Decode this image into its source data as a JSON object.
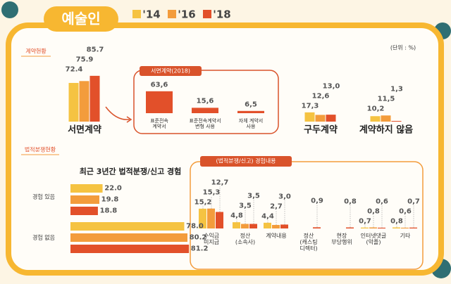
{
  "header": {
    "title": "예술인"
  },
  "unit": "(단위 : %)",
  "sections": [
    "계약현황",
    "법적분쟁현황"
  ],
  "chart_data": [
    {
      "type": "bar",
      "categories": [
        "서면계약",
        "구두계약",
        "계약하지 않음"
      ],
      "series": [
        {
          "name": "'14",
          "color": "#f5c342",
          "values": [
            72.4,
            17.3,
            10.2
          ],
          "value_labels": [
            "72.4",
            "17,3",
            "10,2"
          ]
        },
        {
          "name": "'16",
          "color": "#f39c3c",
          "values": [
            75.9,
            12.6,
            11.5
          ],
          "value_labels": [
            "75.9",
            "12,6",
            "11,5"
          ]
        },
        {
          "name": "'18",
          "color": "#e2502a",
          "values": [
            85.7,
            13.0,
            1.3
          ],
          "value_labels": [
            "85.7",
            "13,0",
            "1,3"
          ]
        }
      ]
    },
    {
      "type": "bar",
      "title": "서면계약(2018)",
      "categories": [
        "표준전속\n계약서",
        "표준전속계약서\n변형 사용",
        "자체 계약서\n사용"
      ],
      "color": "#e2502a",
      "values": [
        63.6,
        15.6,
        6.5
      ],
      "value_labels": [
        "63,6",
        "15,6",
        "6,5"
      ]
    },
    {
      "type": "hbar",
      "title": "최근 3년간 법적분쟁/신고 경험",
      "categories": [
        "경험 있음",
        "경험 없음"
      ],
      "series": [
        {
          "color": "#f5c342",
          "values": [
            22.0,
            78.0
          ],
          "value_labels": [
            "22.0",
            "78.0"
          ]
        },
        {
          "color": "#f39c3c",
          "values": [
            19.8,
            80.2
          ],
          "value_labels": [
            "19.8",
            "80.2"
          ]
        },
        {
          "color": "#e2502a",
          "values": [
            18.8,
            81.2
          ],
          "value_labels": [
            "18.8",
            "81.2"
          ]
        }
      ]
    },
    {
      "type": "bar",
      "title": "(법적분쟁/신고) 경험내용",
      "categories": [
        "수익금\n미지급",
        "정산\n(소속사)",
        "계약내용",
        "정산\n(캐스팅\n디렉터)",
        "현장\n부당행위",
        "인터넷댓글\n(악플)",
        "기타"
      ],
      "series": [
        {
          "color": "#f5c342",
          "values": [
            15.2,
            4.8,
            4.4,
            null,
            null,
            0.7,
            0.8
          ],
          "value_labels": [
            "15,2",
            "4,8",
            "4,4",
            null,
            null,
            "0,7",
            "0,8"
          ]
        },
        {
          "color": "#f39c3c",
          "values": [
            15.3,
            3.5,
            2.7,
            null,
            null,
            0.8,
            0.6
          ],
          "value_labels": [
            "15,3",
            "3,5",
            "2,7",
            null,
            null,
            "0,8",
            "0,6"
          ]
        },
        {
          "color": "#e2502a",
          "values": [
            12.7,
            3.5,
            3.0,
            0.9,
            0.8,
            0.6,
            0.7
          ],
          "value_labels": [
            "12,7",
            "3,5",
            "3,0",
            "0,9",
            "0,8",
            "0,6",
            "0,7"
          ]
        }
      ]
    }
  ]
}
